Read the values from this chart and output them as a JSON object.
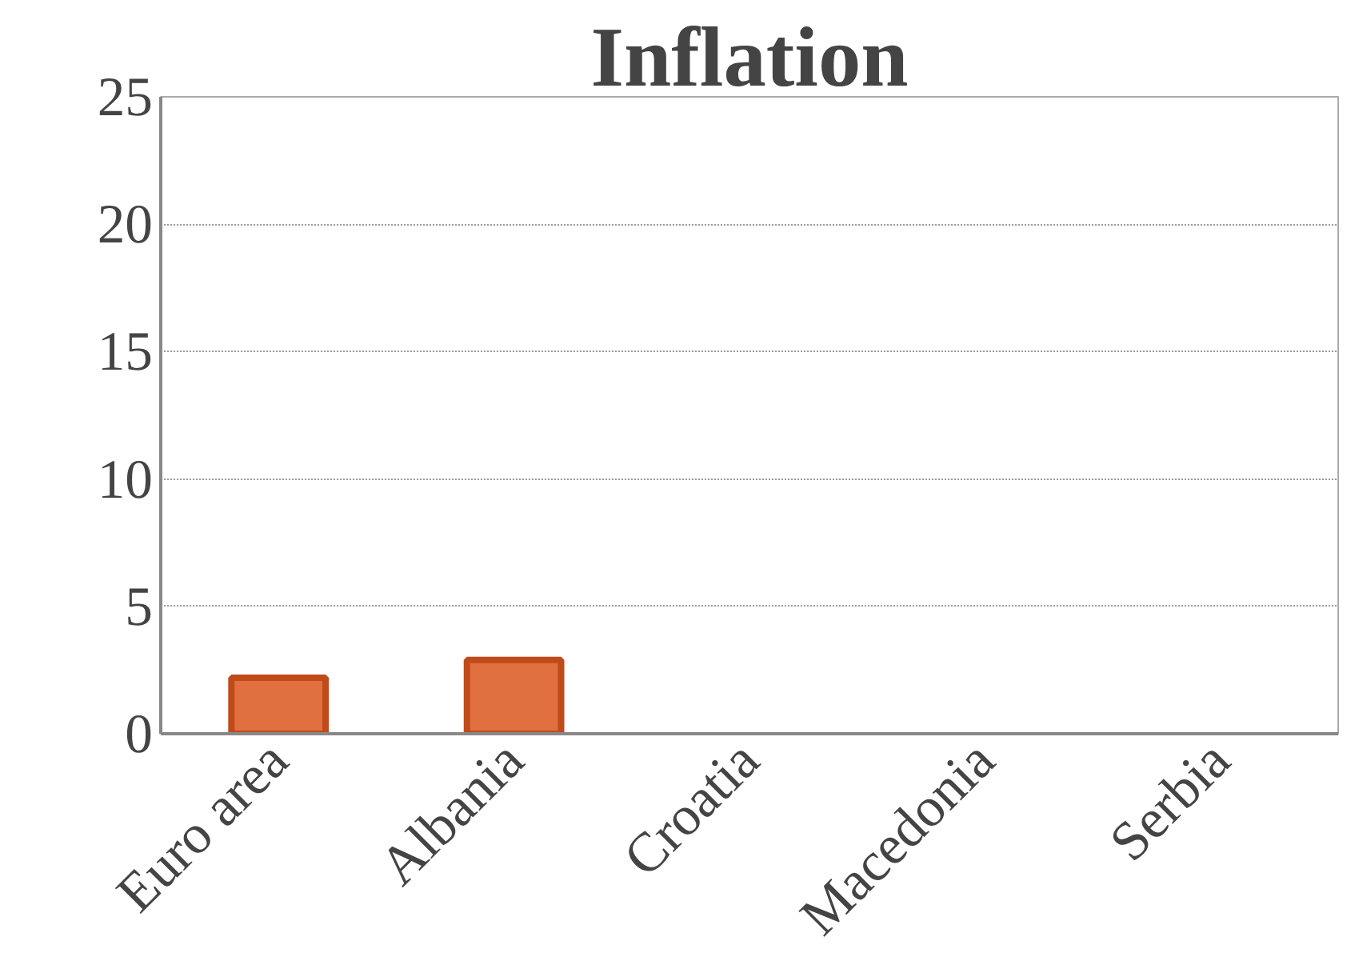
{
  "chart_data": {
    "type": "bar",
    "title": "Inflation",
    "categories": [
      "Euro area",
      "Albania",
      "Croatia",
      "Macedonia",
      "Serbia"
    ],
    "values": [
      2.2,
      2.9,
      null,
      null,
      null
    ],
    "color": "#e07040",
    "ylim": [
      0,
      25
    ],
    "yticks": [
      0,
      5,
      10,
      15,
      20,
      25
    ],
    "grid": "y"
  }
}
